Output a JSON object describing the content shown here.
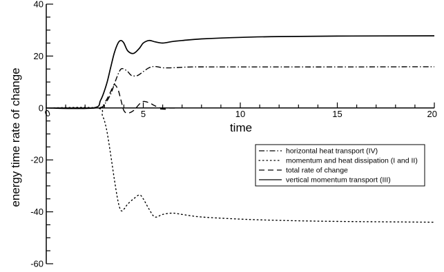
{
  "chart_data": {
    "type": "line",
    "title": "",
    "xlabel": "time",
    "ylabel": "energy time rate of change",
    "xlim": [
      0,
      20
    ],
    "ylim": [
      -60,
      40
    ],
    "x_ticks": [
      0,
      5,
      10,
      15,
      20
    ],
    "y_ticks": [
      40,
      20,
      0,
      -20,
      -40,
      -60
    ],
    "x_tick_labels": [
      "0",
      "5",
      "10",
      "15",
      "20"
    ],
    "y_tick_labels": [
      "40",
      "20",
      "0",
      "-20",
      "-40",
      "-60"
    ],
    "grid": false,
    "legend_position": "center-right",
    "series": [
      {
        "name": "horizontal heat transport (IV)",
        "style": "dashdot",
        "x": [
          0,
          2.6,
          3.0,
          3.3,
          3.5,
          3.7,
          3.85,
          4.0,
          4.2,
          4.4,
          4.7,
          5.0,
          5.3,
          5.6,
          6.0,
          6.5,
          7.5,
          9,
          12,
          15,
          20
        ],
        "y": [
          0,
          0,
          1.5,
          5,
          9,
          13,
          15,
          15,
          14,
          12.5,
          12.5,
          14,
          15.5,
          16,
          15.5,
          15.5,
          15.8,
          15.8,
          15.8,
          15.8,
          15.9
        ]
      },
      {
        "name": "momentum and heat dissipation (I and II)",
        "style": "dotted",
        "x": [
          0,
          2.6,
          2.9,
          3.1,
          3.3,
          3.5,
          3.7,
          3.85,
          4.0,
          4.2,
          4.5,
          4.8,
          5.0,
          5.3,
          5.6,
          6.0,
          6.5,
          7.0,
          8,
          10,
          12,
          15,
          20
        ],
        "y": [
          0,
          0,
          -3,
          -8,
          -17,
          -27,
          -36,
          -39.5,
          -39,
          -37,
          -35,
          -33.5,
          -35,
          -39,
          -42,
          -41,
          -40.5,
          -41,
          -42,
          -42.8,
          -43.3,
          -43.7,
          -44
        ]
      },
      {
        "name": "total rate of change",
        "style": "dashed",
        "x": [
          0,
          2.6,
          3.0,
          3.3,
          3.5,
          3.7,
          3.85,
          4.0,
          4.2,
          4.5,
          4.8,
          5.0,
          5.3,
          5.7,
          6.2,
          7.0,
          20
        ],
        "y": [
          0,
          0,
          2,
          6,
          9,
          7,
          3,
          -1,
          -2,
          -1,
          1.5,
          2.5,
          2,
          0.5,
          -0.5,
          0,
          0
        ]
      },
      {
        "name": "vertical momentum transport (III)",
        "style": "solid",
        "x": [
          0,
          2.4,
          2.8,
          3.1,
          3.3,
          3.5,
          3.7,
          3.85,
          4.0,
          4.2,
          4.5,
          4.8,
          5.0,
          5.3,
          5.6,
          6.0,
          6.5,
          7.0,
          8,
          10,
          12,
          15,
          20
        ],
        "y": [
          0,
          0,
          3,
          9,
          15,
          21,
          25,
          26,
          25,
          22,
          21,
          23,
          25,
          26,
          25.5,
          25,
          25.6,
          26,
          26.6,
          27.2,
          27.5,
          27.7,
          27.8
        ]
      }
    ]
  }
}
